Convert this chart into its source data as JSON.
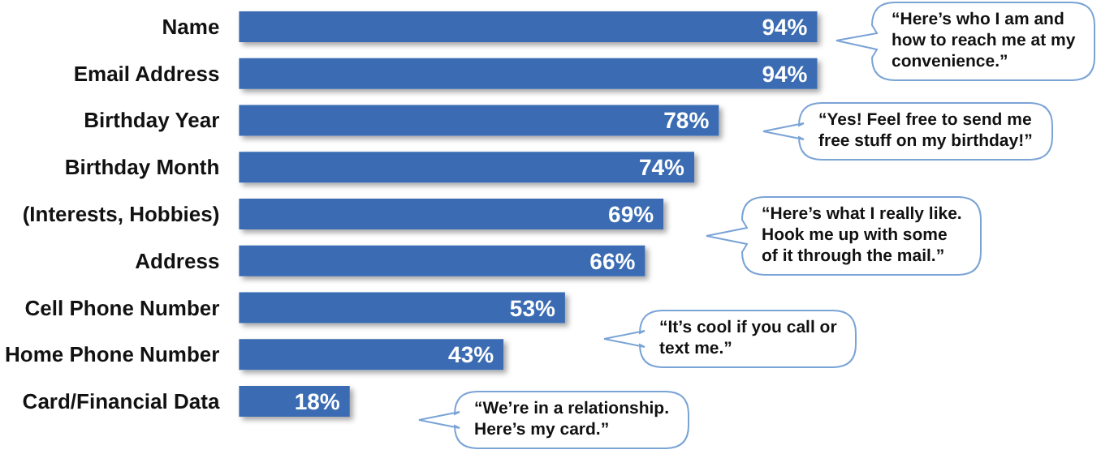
{
  "chart_data": {
    "type": "bar",
    "orientation": "horizontal",
    "categories": [
      "Name",
      "Email Address",
      "Birthday Year",
      "Birthday Month",
      "(Interests, Hobbies)",
      "Address",
      "Cell Phone Number",
      "Home Phone Number",
      "Card/Financial Data"
    ],
    "values": [
      94,
      94,
      78,
      74,
      69,
      66,
      53,
      43,
      18
    ],
    "value_labels": [
      "94%",
      "94%",
      "78%",
      "74%",
      "69%",
      "66%",
      "53%",
      "43%",
      "18%"
    ],
    "color": "#3b6cb3",
    "tick_labels": "y",
    "grid": false,
    "annotations": [
      "“Here’s who I am and\nhow to reach me at my\nconvenience.”",
      "“Yes! Feel free to send me\nfree stuff on my birthday!”",
      "“Here’s what I really like.\nHook me up with some\nof it through the mail.”",
      "“It’s cool if you call or\ntext me.”",
      "“We’re in a relationship.\nHere’s my card.”"
    ]
  }
}
